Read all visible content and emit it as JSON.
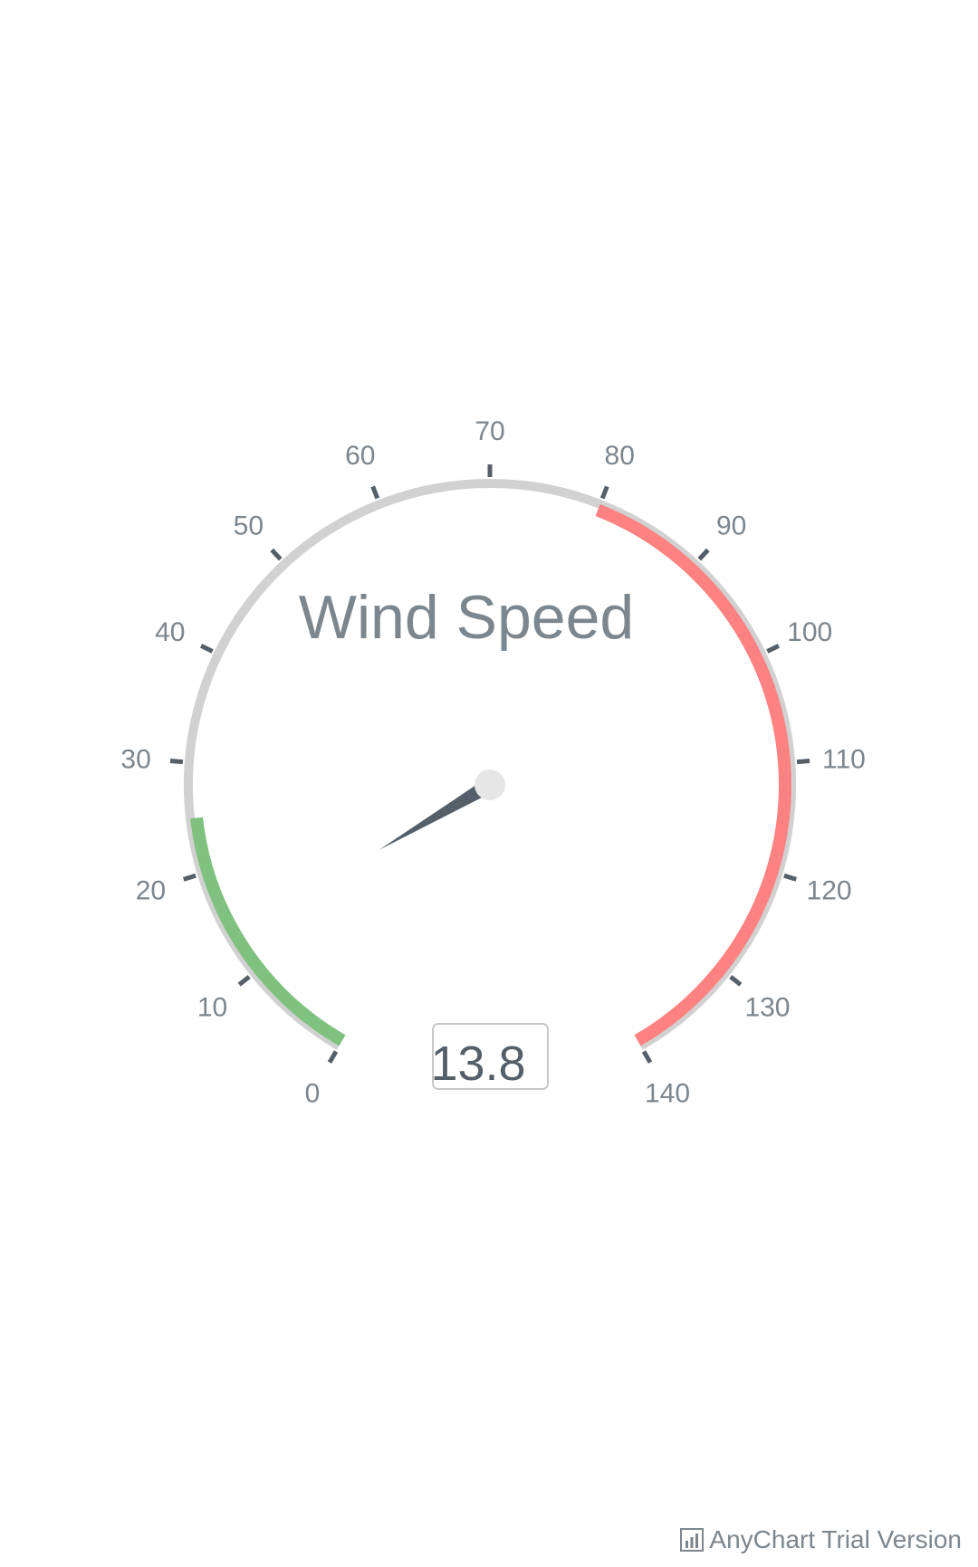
{
  "chart_data": {
    "type": "gauge",
    "title": "Wind Speed",
    "value": 13.8,
    "value_label": "13.8",
    "scale": {
      "min": 0,
      "max": 140,
      "major_interval": 10
    },
    "tick_labels": [
      "0",
      "10",
      "20",
      "30",
      "40",
      "50",
      "60",
      "70",
      "80",
      "90",
      "100",
      "110",
      "120",
      "130",
      "140"
    ],
    "ranges": [
      {
        "from": 0,
        "to": 25,
        "color": "#7fc17f"
      },
      {
        "from": 80,
        "to": 140,
        "color": "#fd8281"
      }
    ],
    "colors": {
      "track": "#d1d1d1",
      "ticks": "#545f69",
      "needle": "#545f69",
      "cap": "#e6e6e6",
      "labels": "#7c868e"
    }
  },
  "watermark": {
    "text": "AnyChart Trial Version",
    "icon": "bar-chart-icon"
  }
}
